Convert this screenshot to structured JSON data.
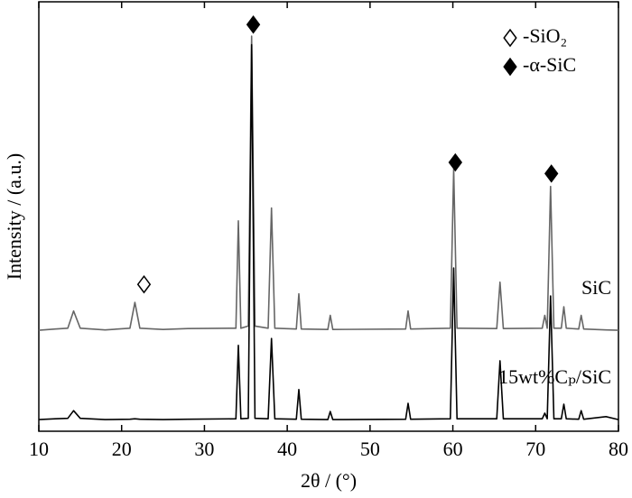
{
  "chart_data": {
    "type": "line",
    "xlabel": "2θ / (°)",
    "ylabel": "Intensity / (a.u.)",
    "x": [
      10,
      12,
      13.5,
      14.2,
      15,
      18,
      21,
      21.6,
      22.2,
      25,
      28,
      33.8,
      34.1,
      34.4,
      35.3,
      35.7,
      36.1,
      37.7,
      38.1,
      38.5,
      41.1,
      41.4,
      41.7,
      44.9,
      45.2,
      45.5,
      54.3,
      54.6,
      54.9,
      59.7,
      60.1,
      60.5,
      65.3,
      65.7,
      66.1,
      70.8,
      71.1,
      71.4,
      71.8,
      72.2,
      73.1,
      73.4,
      73.7,
      75.2,
      75.5,
      75.8,
      78.5,
      80
    ],
    "series": [
      {
        "name": "SiC",
        "color": "#666666",
        "values": [
          23.5,
          23.8,
          24,
          28,
          24,
          23.6,
          24,
          30,
          24,
          23.7,
          23.9,
          24,
          49,
          24,
          24.5,
          92,
          24.5,
          24,
          52,
          24,
          23.8,
          32,
          23.8,
          23.7,
          27,
          23.7,
          23.8,
          28,
          23.8,
          24,
          61,
          24,
          23.9,
          34.7,
          23.9,
          24,
          27,
          24,
          57,
          24,
          24,
          29,
          24,
          23.8,
          27,
          23.8,
          23.6,
          23.5
        ]
      },
      {
        "name": "15wt%Cₚ/SiC",
        "color": "#000000",
        "values": [
          2.7,
          2.9,
          3,
          4.8,
          3,
          2.7,
          2.8,
          2.9,
          2.8,
          2.7,
          2.8,
          2.9,
          20,
          2.9,
          3,
          90,
          3,
          2.9,
          21.6,
          2.9,
          2.8,
          9.7,
          2.8,
          2.7,
          4.6,
          2.7,
          2.8,
          6.5,
          2.8,
          2.9,
          38,
          2.9,
          2.9,
          16.4,
          2.9,
          2.9,
          4.2,
          2.9,
          31.5,
          2.9,
          2.9,
          6.3,
          2.9,
          2.8,
          4.8,
          2.8,
          3.4,
          2.7
        ]
      }
    ],
    "xlim": [
      10,
      80
    ],
    "ylim": [
      0,
      100
    ],
    "xticks": [
      10,
      20,
      30,
      40,
      50,
      60,
      70,
      80
    ],
    "markers": [
      {
        "x": 22.7,
        "y": 34.2,
        "shape": "open-diamond"
      },
      {
        "x": 35.9,
        "y": 94.7,
        "shape": "filled-diamond"
      },
      {
        "x": 60.3,
        "y": 62.6,
        "shape": "filled-diamond"
      },
      {
        "x": 71.9,
        "y": 60,
        "shape": "filled-diamond"
      }
    ],
    "legend": "upper right",
    "legend_entries": [
      {
        "shape": "open-diamond",
        "label": "-SiO₂"
      },
      {
        "shape": "filled-diamond",
        "label": "-α-SiC"
      }
    ]
  }
}
